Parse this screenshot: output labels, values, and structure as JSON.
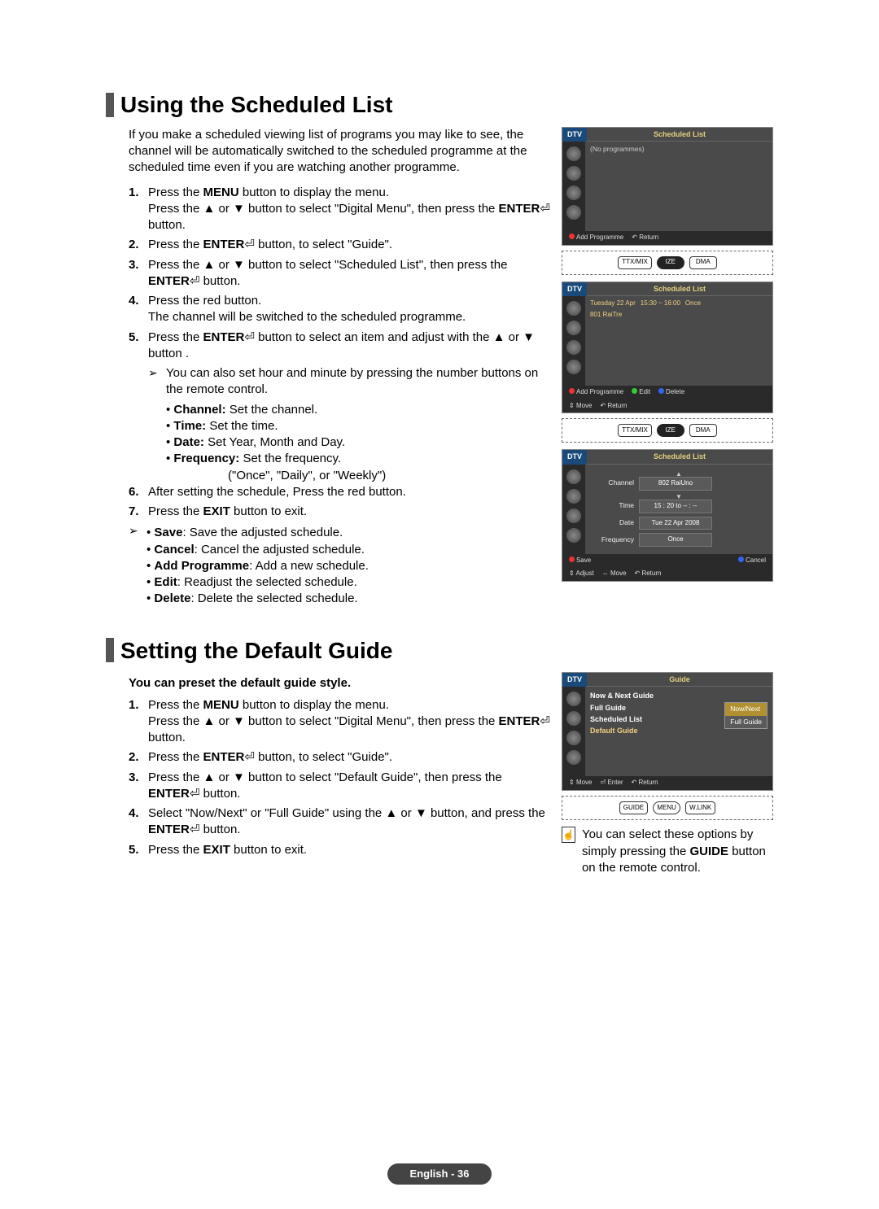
{
  "section1": {
    "heading": "Using the Scheduled List",
    "intro": "If you make a scheduled viewing list of programs you may like to see, the channel will be automatically switched to the scheduled programme at the scheduled time even if you are watching another programme.",
    "steps": [
      {
        "n": "1.",
        "t": "Press the <b>MENU</b> button to display the menu.<br>Press the ▲ or ▼ button to select \"Digital Menu\", then press the <b>ENTER</b>⏎ button."
      },
      {
        "n": "2.",
        "t": "Press the <b>ENTER</b>⏎ button, to select \"Guide\"."
      },
      {
        "n": "3.",
        "t": "Press the ▲ or ▼ button to select \"Scheduled List\", then press the <b>ENTER</b>⏎ button."
      },
      {
        "n": "4.",
        "t": "Press the red button.<br>The channel will be switched to the scheduled programme."
      },
      {
        "n": "5.",
        "t": "Press the <b>ENTER</b>⏎ button to select an item and adjust with the ▲ or ▼ button ."
      }
    ],
    "step5_note": "You can also set hour and minute by pressing the number buttons on the remote control.",
    "step5_bullets": [
      "<b>Channel:</b> Set the channel.",
      "<b>Time:</b> Set the time.",
      "<b>Date:</b> Set Year, Month and Day.",
      "<b>Frequency:</b> Set the frequency."
    ],
    "freq_hint": "(\"Once\", \"Daily\", or \"Weekly\")",
    "steps67": [
      {
        "n": "6.",
        "t": "After setting the schedule, Press the red button."
      },
      {
        "n": "7.",
        "t": "Press the <b>EXIT</b> button to exit."
      }
    ],
    "end_bullets": [
      "<b>Save</b>: Save the adjusted schedule.",
      "<b>Cancel</b>: Cancel the adjusted schedule.",
      "<b>Add Programme</b>: Add a new schedule.",
      "<b>Edit</b>: Readjust the selected schedule.",
      "<b>Delete</b>: Delete the selected schedule."
    ],
    "tv1": {
      "dtv": "DTV",
      "title": "Scheduled List",
      "noprog": "(No programmes)",
      "add": "Add Programme",
      "return": "Return"
    },
    "remote1": {
      "a": "TTX/MIX",
      "b": "IZE",
      "c": "DMA"
    },
    "tv2": {
      "dtv": "DTV",
      "title": "Scheduled List",
      "date": "Tuesday 22 Apr",
      "time": "15:30 ~ 16:00",
      "freq": "Once",
      "ch": "801 RaiTre",
      "add": "Add Programme",
      "edit": "Edit",
      "del": "Delete",
      "move": "Move",
      "return": "Return"
    },
    "remote2": {
      "a": "TTX/MIX",
      "b": "IZE",
      "c": "DMA"
    },
    "tv3": {
      "dtv": "DTV",
      "title": "Scheduled List",
      "channel_lbl": "Channel",
      "channel_val": "802 RaiUno",
      "time_lbl": "Time",
      "time_val": "15 : 20 to -- : --",
      "date_lbl": "Date",
      "date_val": "Tue 22 Apr 2008",
      "freq_lbl": "Frequency",
      "freq_val": "Once",
      "save": "Save",
      "cancel": "Cancel",
      "adjust": "Adjust",
      "move": "Move",
      "return": "Return"
    }
  },
  "section2": {
    "heading": "Setting the Default Guide",
    "sub": "You can preset the default guide style.",
    "steps": [
      {
        "n": "1.",
        "t": "Press the <b>MENU</b> button to display the menu.<br>Press the ▲ or ▼ button to select \"Digital Menu\", then press the <b>ENTER</b>⏎ button."
      },
      {
        "n": "2.",
        "t": "Press the <b>ENTER</b>⏎ button, to select \"Guide\"."
      },
      {
        "n": "3.",
        "t": "Press the ▲ or ▼ button to select \"Default Guide\", then press the <b>ENTER</b>⏎ button."
      },
      {
        "n": "4.",
        "t": "Select \"Now/Next\" or \"Full Guide\" using the ▲ or ▼ button, and press the <b>ENTER</b>⏎ button."
      },
      {
        "n": "5.",
        "t": "Press the <b>EXIT</b> button to exit."
      }
    ],
    "tv": {
      "dtv": "DTV",
      "title": "Guide",
      "items": [
        "Now & Next Guide",
        "Full Guide",
        "Scheduled List",
        "Default Guide"
      ],
      "opt1": "Now/Next",
      "opt2": "Full Guide",
      "move": "Move",
      "enter": "Enter",
      "return": "Return"
    },
    "remote": {
      "a": "GUIDE",
      "b": "MENU",
      "c": "W.LINK"
    },
    "tip": "You can select these options by simply pressing the <b>GUIDE</b> button on the remote control."
  },
  "page_footer": "English - 36"
}
